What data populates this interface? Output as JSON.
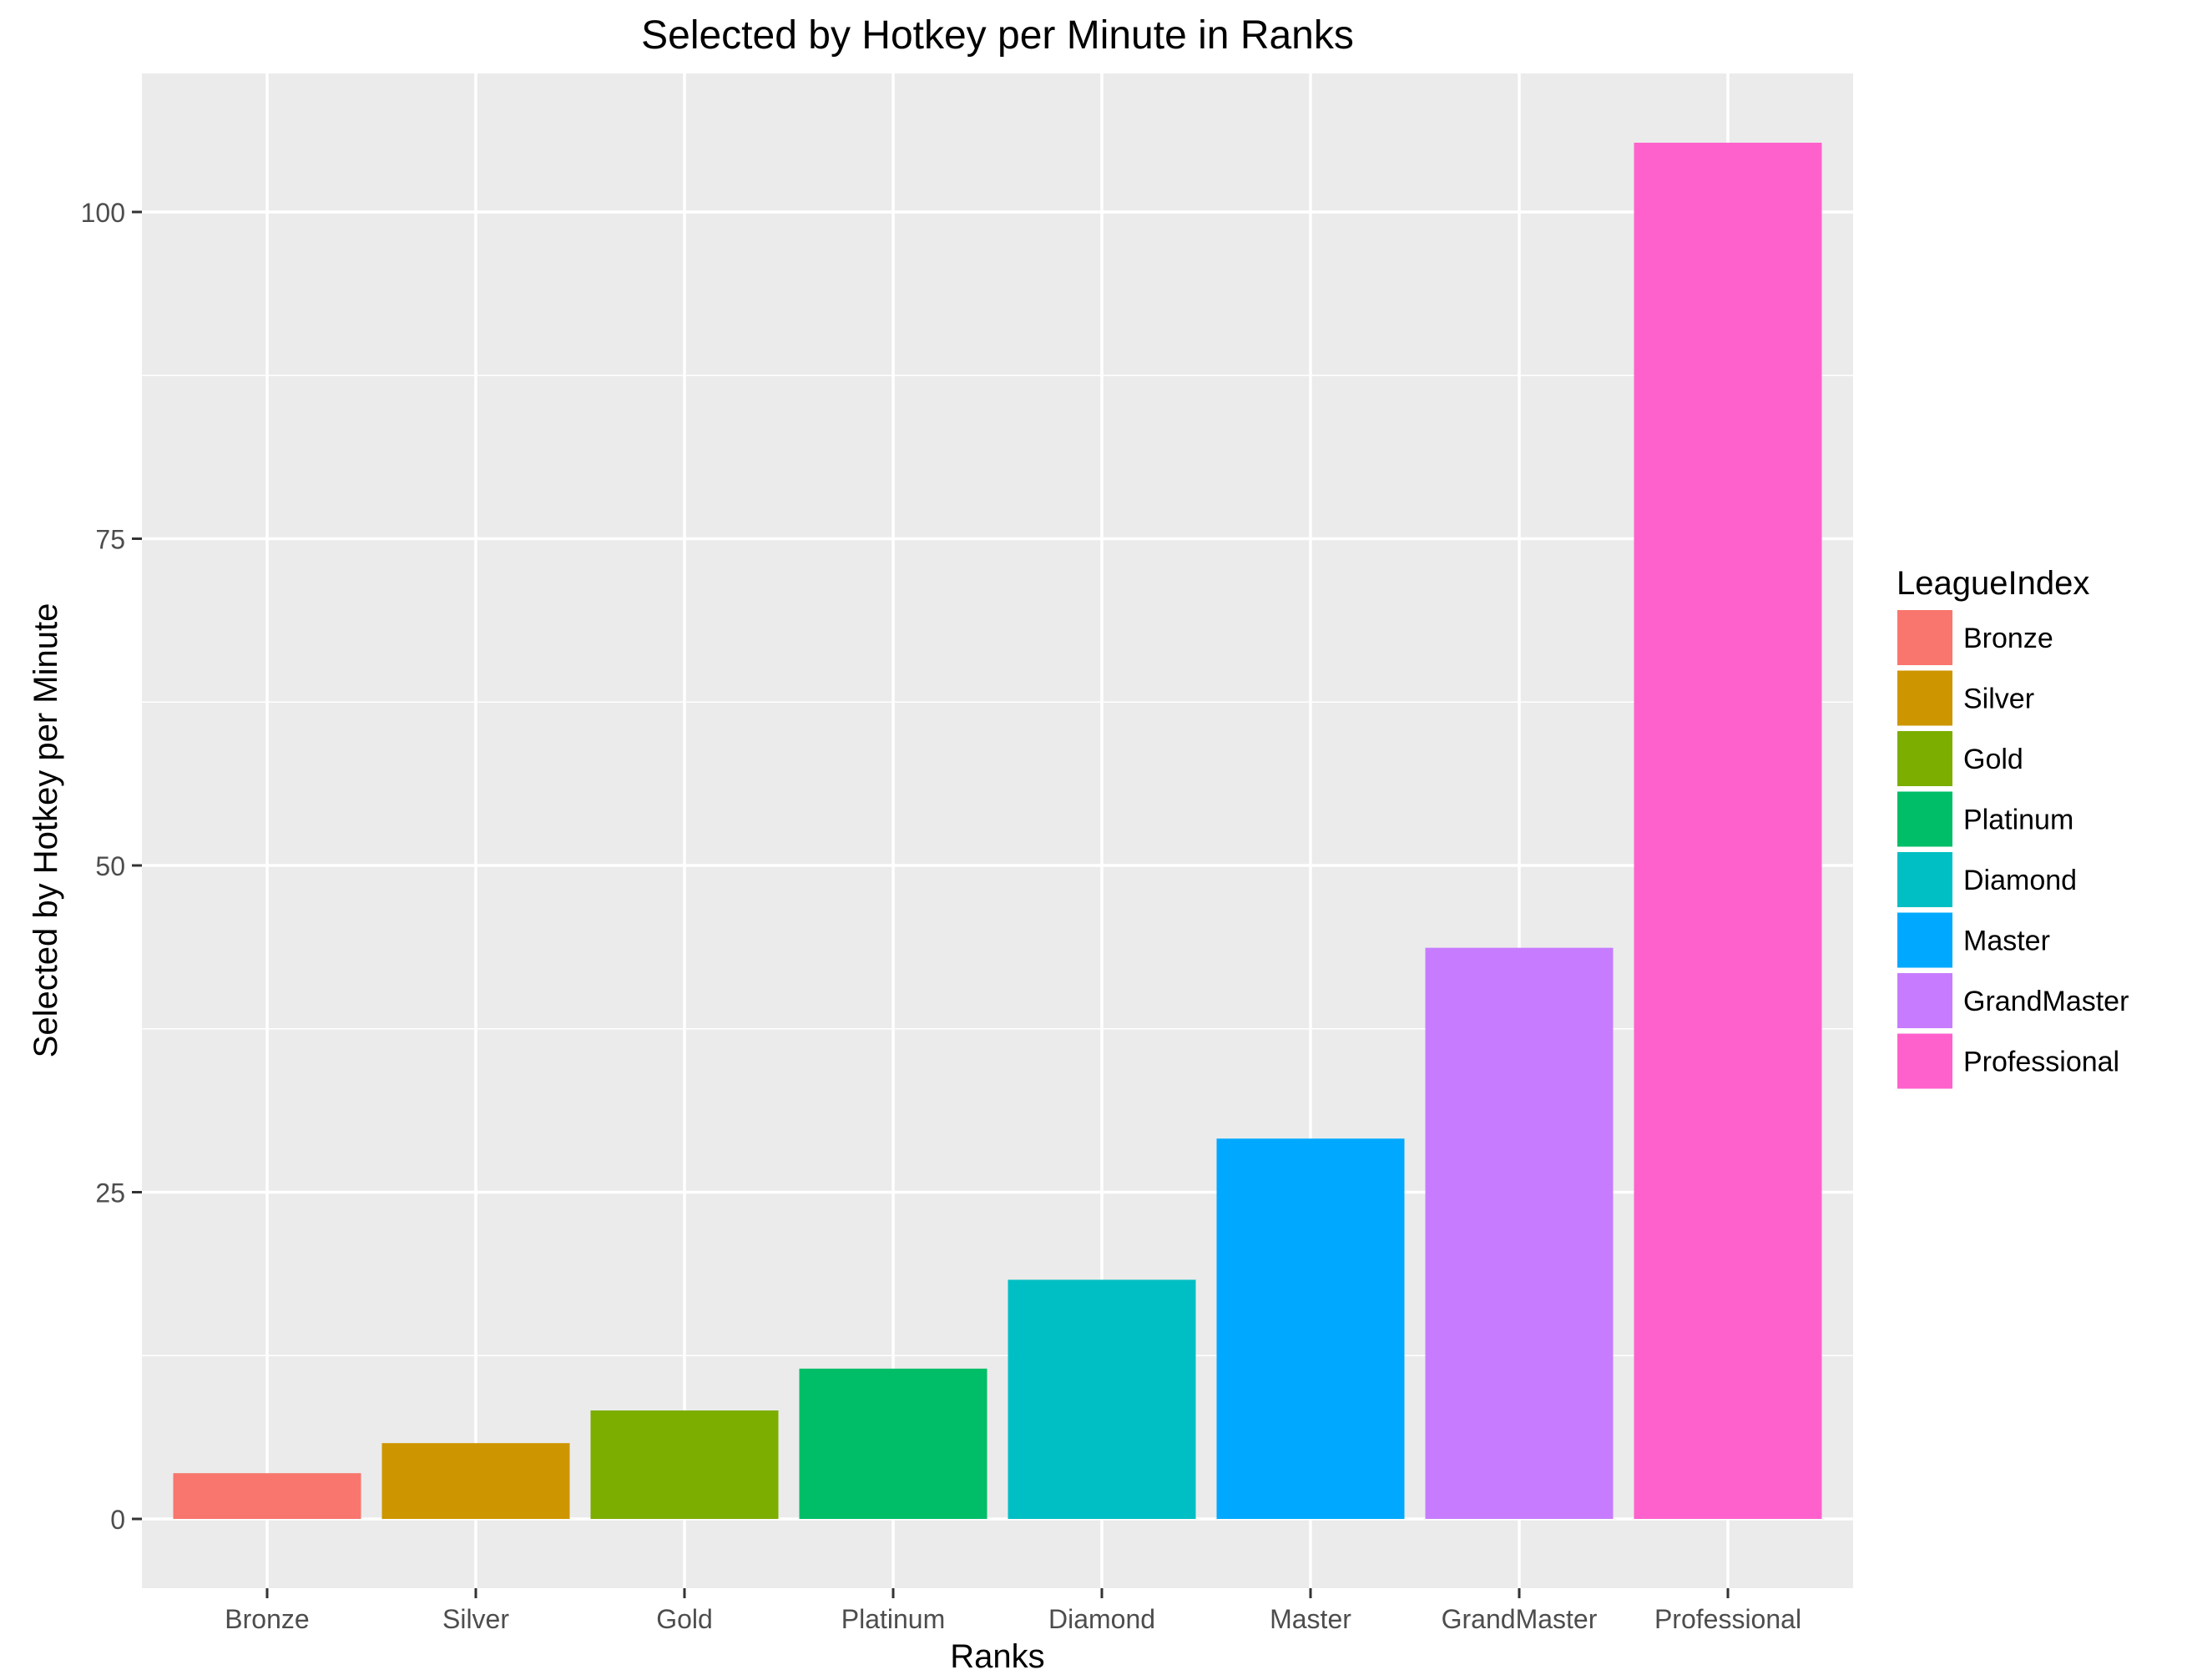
{
  "chart_data": {
    "type": "bar",
    "title": "Selected by Hotkey per Minute in Ranks",
    "xlabel": "Ranks",
    "ylabel": "Selected by Hotkey per Minute",
    "categories": [
      "Bronze",
      "Silver",
      "Gold",
      "Platinum",
      "Diamond",
      "Master",
      "GrandMaster",
      "Professional"
    ],
    "values": [
      3.5,
      5.8,
      8.3,
      11.5,
      18.3,
      29.1,
      43.7,
      105.3
    ],
    "colors": [
      "#F8766D",
      "#CD9600",
      "#7CAE00",
      "#00BE67",
      "#00BFC4",
      "#00A9FF",
      "#C77CFF",
      "#FF61CC"
    ],
    "yticks": [
      0,
      25,
      50,
      75,
      100
    ],
    "ylim": [
      -5.3,
      110.6
    ],
    "grid": true,
    "legend": {
      "title": "LeagueIndex",
      "position": "right",
      "entries": [
        "Bronze",
        "Silver",
        "Gold",
        "Platinum",
        "Diamond",
        "Master",
        "GrandMaster",
        "Professional"
      ]
    }
  }
}
